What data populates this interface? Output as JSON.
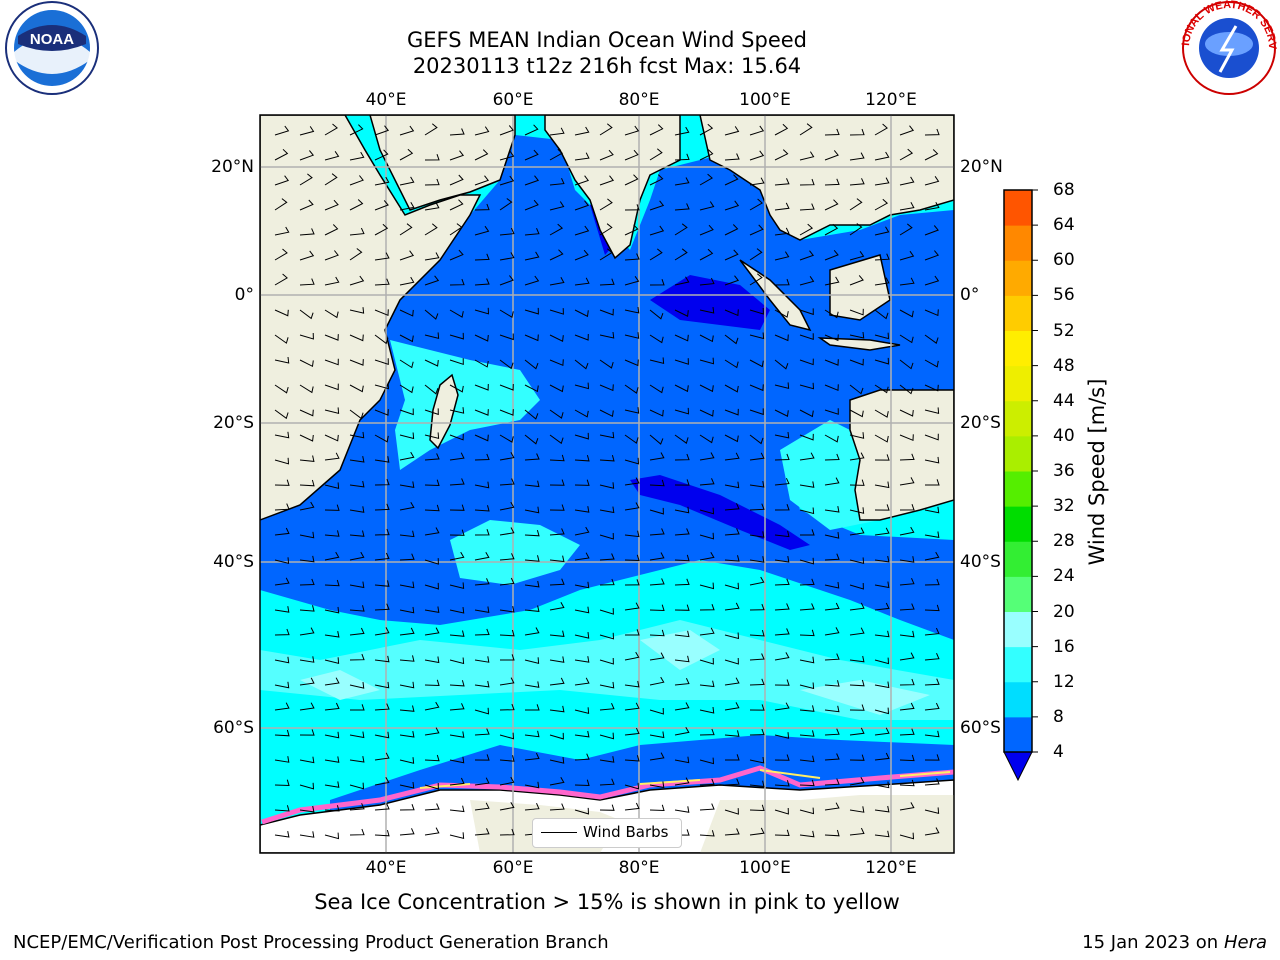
{
  "title": {
    "line1": "GEFS MEAN Indian Ocean Wind Speed",
    "line2": "20230113 t12z 216h fcst   Max: 15.64"
  },
  "map": {
    "lon_ticks": [
      "40°E",
      "60°E",
      "80°E",
      "100°E",
      "120°E"
    ],
    "lat_ticks": [
      "20°N",
      "0°",
      "20°S",
      "40°S",
      "60°S"
    ],
    "colors": {
      "land": "#efefdf",
      "ice_white": "#ffffff",
      "ice_pink": "#ff66cc"
    }
  },
  "legend": {
    "wind_barbs_label": "Wind Barbs"
  },
  "colorbar": {
    "label": "Wind Speed [m/s]",
    "ticks": [
      "4",
      "8",
      "12",
      "16",
      "20",
      "24",
      "28",
      "32",
      "36",
      "40",
      "44",
      "48",
      "52",
      "56",
      "60",
      "64",
      "68"
    ],
    "colors": [
      "#0066ff",
      "#00ddff",
      "#33ffff",
      "#99ffff",
      "#55ff77",
      "#33ee33",
      "#00dd00",
      "#55ee00",
      "#aaee00",
      "#ccee00",
      "#eeee00",
      "#ffee00",
      "#ffcc00",
      "#ffaa00",
      "#ff8800",
      "#ff5500",
      "#ff2200",
      "#ff0000"
    ],
    "under_color": "#0000ee"
  },
  "caption": "Sea Ice Concentration > 15% is shown in pink to yellow",
  "footer": {
    "left": "NCEP/EMC/Verification Post Processing Product Generation Branch",
    "date": "15 Jan 2023 on ",
    "host": "Hera"
  },
  "logos": {
    "noaa_text": "NOAA",
    "nws_text": "NATIONAL WEATHER SERVICE"
  }
}
